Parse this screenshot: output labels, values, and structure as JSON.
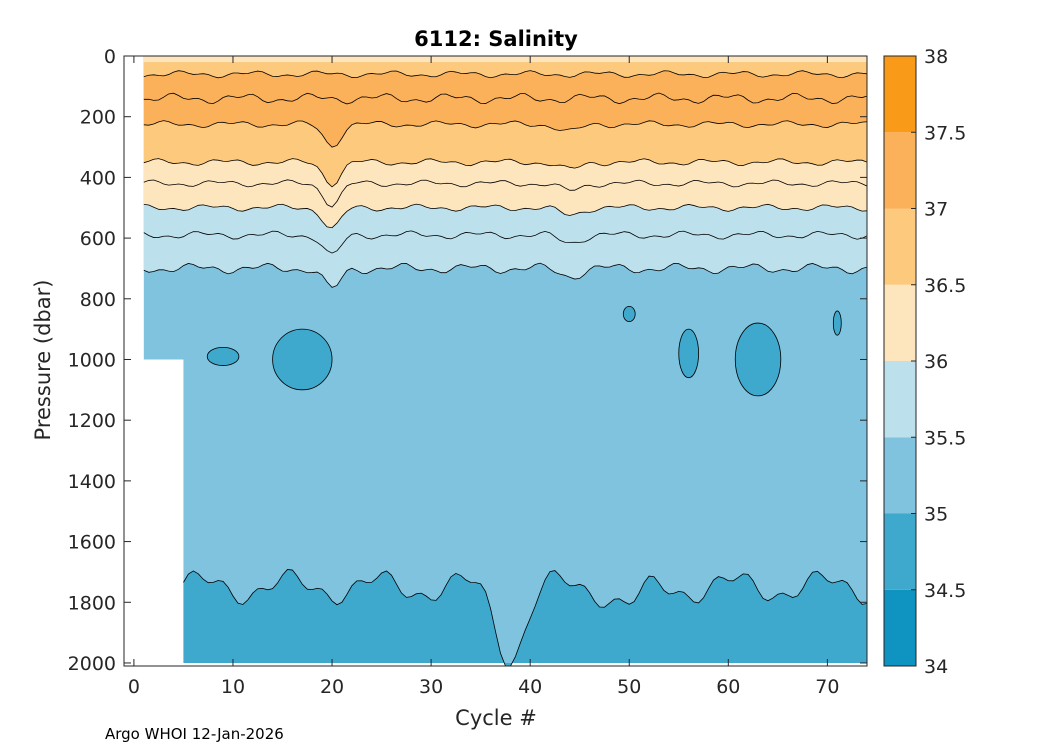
{
  "chart_data": {
    "type": "heatmap",
    "title": "6112:  Salinity",
    "xlabel": "Cycle #",
    "ylabel": "Pressure (dbar)",
    "xlim": [
      -1,
      74
    ],
    "ylim": [
      0,
      2010
    ],
    "y_reversed": true,
    "x_ticks": [
      0,
      10,
      20,
      30,
      40,
      50,
      60,
      70
    ],
    "y_ticks": [
      0,
      200,
      400,
      600,
      800,
      1000,
      1200,
      1400,
      1600,
      1800,
      2000
    ],
    "colorbar": {
      "levels": [
        34,
        34.5,
        35,
        35.5,
        36,
        36.5,
        37,
        37.5,
        38
      ],
      "tick_labels": [
        "34",
        "34.5",
        "35",
        "35.5",
        "36",
        "36.5",
        "37",
        "37.5",
        "38"
      ],
      "colors": [
        "#0f93c0",
        "#3fa8cd",
        "#7fc3de",
        "#bde0ed",
        "#fde5bd",
        "#fcc97d",
        "#fbb05a",
        "#f99a19"
      ]
    },
    "data_extent": {
      "cycle_start": 1,
      "cycle_end": 74,
      "early_cycles_end": 5,
      "early_max_pressure": 1000,
      "max_pressure": 2000
    },
    "layer_boundaries_dbar": [
      {
        "salinity": 37.0,
        "mean_pressure": 225
      },
      {
        "salinity": 36.5,
        "mean_pressure": 350
      },
      {
        "salinity": 36.0,
        "mean_pressure": 500
      },
      {
        "salinity": 35.5,
        "mean_pressure": 700
      },
      {
        "salinity": 35.0,
        "mean_pressure": 1750
      }
    ],
    "color_palette": {
      "axes": "#262626",
      "contour": "#000000"
    }
  },
  "footer": {
    "text": "Argo WHOI 12-Jan-2026"
  }
}
